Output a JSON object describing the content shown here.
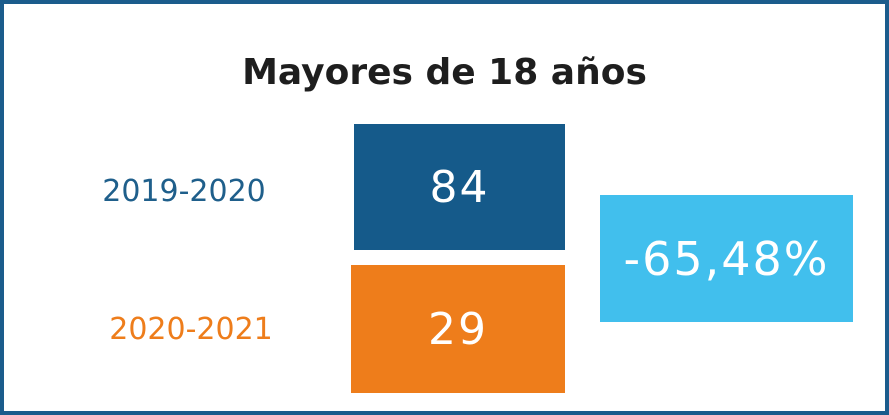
{
  "title": "Mayores de 18 años",
  "rows": [
    {
      "period": "2019-2020",
      "value": 84
    },
    {
      "period": "2020-2021",
      "value": 29
    }
  ],
  "change": "-65,48%"
}
